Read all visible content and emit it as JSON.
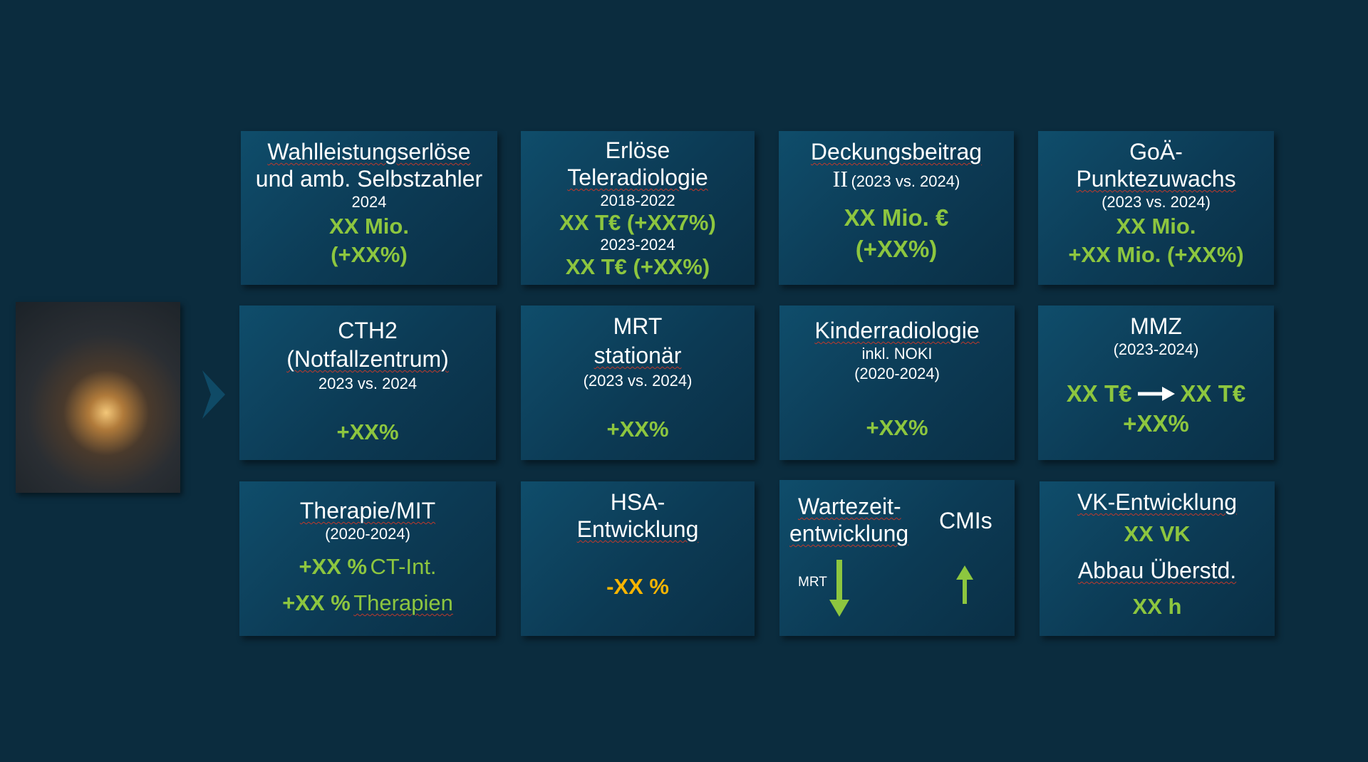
{
  "tiles": [
    {
      "lines": [
        "Wahlleistungserlöse",
        "und amb. Selbstzahler",
        "2024",
        "XX Mio.",
        "(+XX%)"
      ]
    },
    {
      "lines": [
        "Erlöse",
        "Teleradiologie",
        "2018-2022",
        "XX T€ (+XX7%)",
        "2023-2024",
        "XX T€ (+XX%)"
      ]
    },
    {
      "lines": [
        "Deckungsbeitrag",
        "II",
        "(2023 vs. 2024)",
        "XX Mio. €",
        "(+XX%)"
      ]
    },
    {
      "lines": [
        "GoÄ-",
        "Punktezuwachs",
        "(2023 vs. 2024)",
        "XX Mio.",
        "+XX Mio. (+XX%)"
      ]
    },
    {
      "lines": [
        "CTH2",
        "(Notfallzentrum)",
        "2023 vs. 2024",
        "+XX%"
      ]
    },
    {
      "lines": [
        "MRT",
        "stationär",
        "(2023 vs. 2024)",
        "+XX%"
      ]
    },
    {
      "lines": [
        "Kinderradiologie",
        "inkl. NOKI",
        "(2020-2024)",
        "+XX%"
      ]
    },
    {
      "lines": [
        "MMZ",
        "(2023-2024)",
        "XX T€",
        "XX T€",
        "+XX%"
      ]
    },
    {
      "lines": [
        "Therapie/MIT",
        "(2020-2024)",
        "+XX %",
        "CT-Int.",
        "+XX %",
        "Therapien"
      ]
    },
    {
      "lines": [
        "HSA-",
        "Entwicklung",
        "-XX %"
      ]
    },
    {
      "lines": [
        "Wartezeit-",
        "entwicklung",
        "CMIs",
        "MRT"
      ]
    },
    {
      "lines": [
        "VK-Entwicklung",
        "XX VK",
        "Abbau Überstd.",
        "XX h"
      ]
    }
  ]
}
